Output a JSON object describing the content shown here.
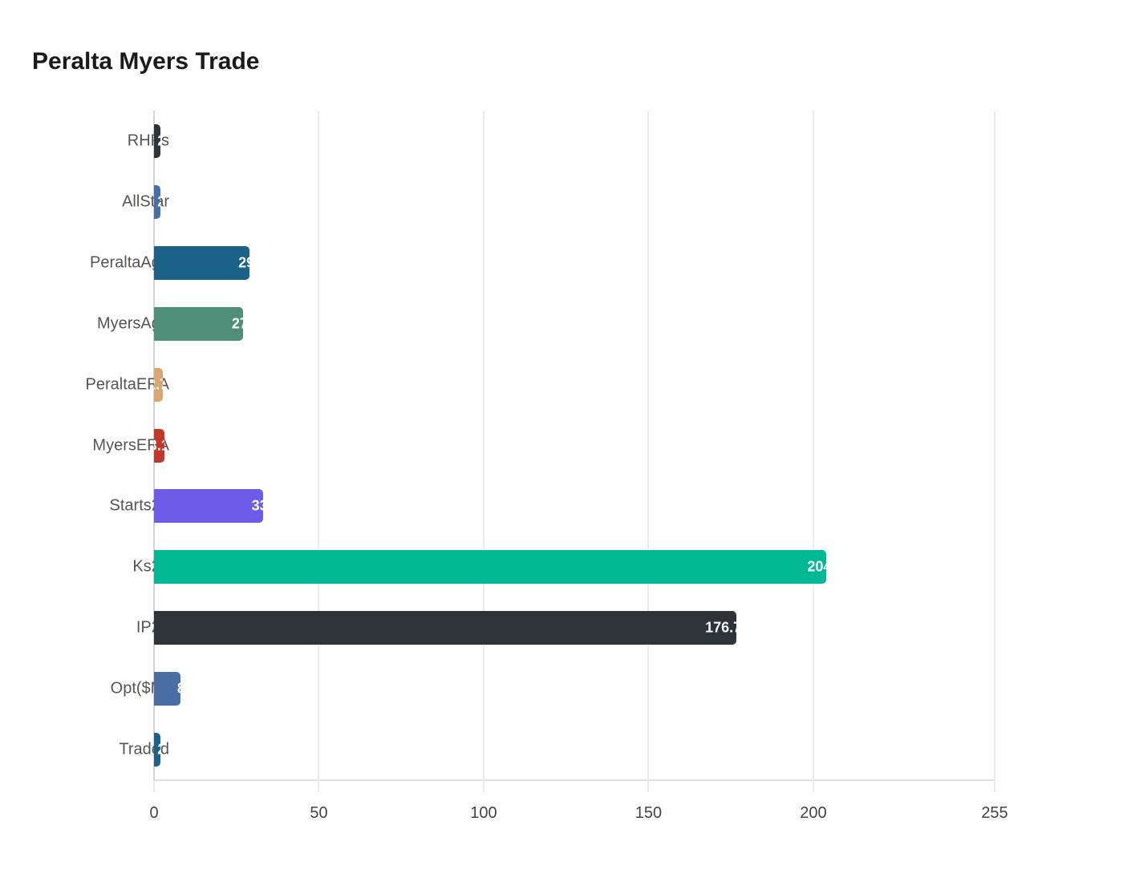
{
  "chart_data": {
    "type": "bar",
    "orientation": "horizontal",
    "title": "Peralta Myers Trade",
    "xlabel": "",
    "ylabel": "",
    "xlim": [
      0,
      255
    ],
    "grid": true,
    "legend": null,
    "categories": [
      "RHPs",
      "AllStar",
      "PeraltaAge",
      "MyersAge",
      "PeraltaERA",
      "MyersERA",
      "Starts25",
      "Ks25",
      "IP25",
      "Opt($M)",
      "Traded"
    ],
    "values": [
      2,
      2,
      29,
      27,
      2.7,
      3.1,
      33,
      204,
      176.7,
      8,
      2
    ],
    "colors": [
      "#2e3436",
      "#4a6fa5",
      "#1b6188",
      "#4f8f7a",
      "#d9a66f",
      "#c0392b",
      "#6c5ce7",
      "#00b894",
      "#2d3436",
      "#4a6fa5",
      "#1b6188"
    ],
    "data_labels": [
      "2",
      "2",
      "29",
      "27",
      "2.7",
      "3.1",
      "33",
      "204",
      "176.7",
      "8",
      "2"
    ],
    "x_ticks": [
      0,
      50,
      100,
      150,
      200,
      255
    ]
  },
  "header": {
    "title": "Peralta Myers Trade"
  },
  "axis": {
    "x_ticks": [
      {
        "label": "0",
        "value": 0
      },
      {
        "label": "50",
        "value": 50
      },
      {
        "label": "100",
        "value": 100
      },
      {
        "label": "150",
        "value": 150
      },
      {
        "label": "200",
        "value": 200
      },
      {
        "label": "255",
        "value": 255
      }
    ]
  },
  "bars": [
    {
      "label": "RHPs",
      "value": 2,
      "display": "2",
      "color": "#2e3436"
    },
    {
      "label": "AllStar",
      "value": 2,
      "display": "2",
      "color": "#4a6fa5"
    },
    {
      "label": "PeraltaAge",
      "value": 29,
      "display": "29",
      "color": "#1b6188"
    },
    {
      "label": "MyersAge",
      "value": 27,
      "display": "27",
      "color": "#4f8f7a"
    },
    {
      "label": "PeraltaERA",
      "value": 2.7,
      "display": "2.7",
      "color": "#d9a66f"
    },
    {
      "label": "MyersERA",
      "value": 3.1,
      "display": "3.1",
      "color": "#c0392b"
    },
    {
      "label": "Starts25",
      "value": 33,
      "display": "33",
      "color": "#6c5ce7"
    },
    {
      "label": "Ks25",
      "value": 204,
      "display": "204",
      "color": "#00b894"
    },
    {
      "label": "IP25",
      "value": 176.7,
      "display": "176.7",
      "color": "#2d3436"
    },
    {
      "label": "Opt($M)",
      "value": 8,
      "display": "8",
      "color": "#4a6fa5"
    },
    {
      "label": "Traded",
      "value": 2,
      "display": "2",
      "color": "#1b6188"
    }
  ]
}
